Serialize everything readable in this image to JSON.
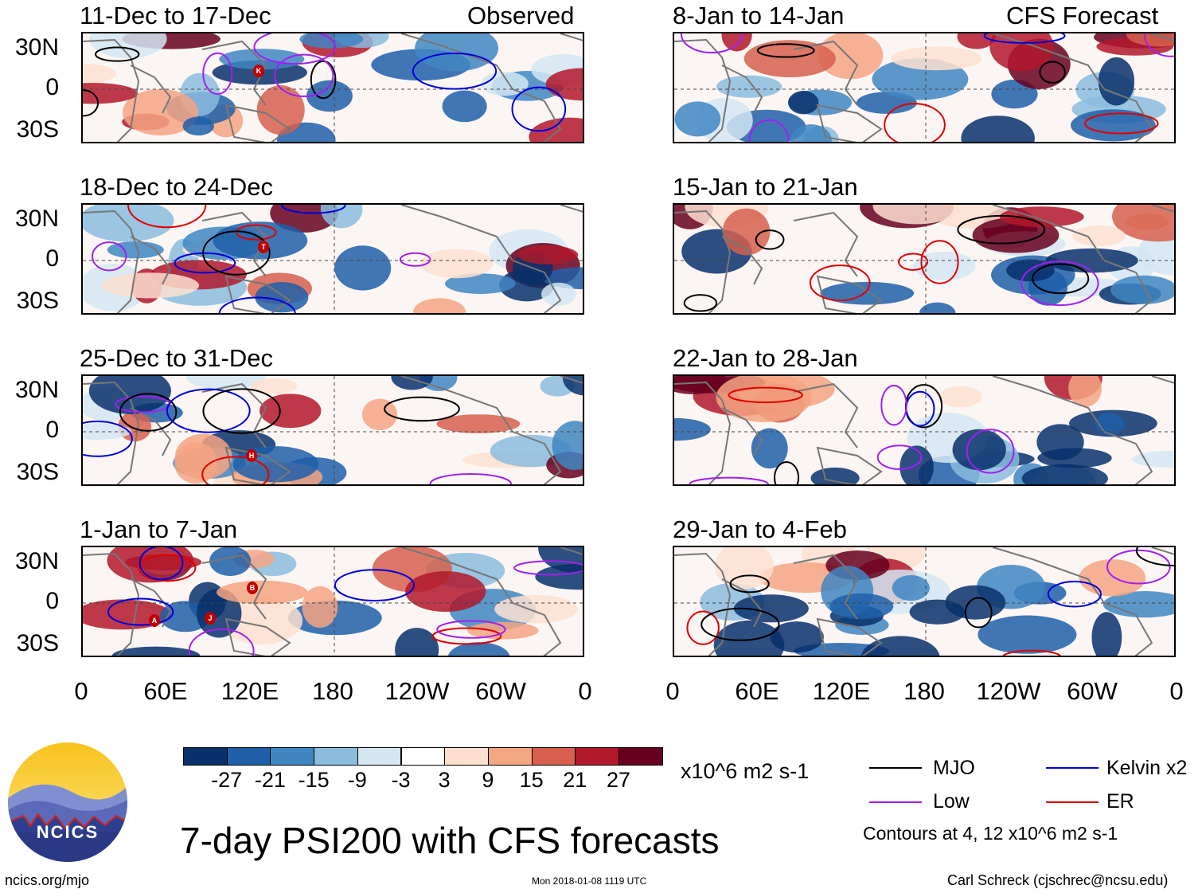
{
  "observed_label": "Observed",
  "forecast_label": "CFS Forecast",
  "lat_labels": [
    "30N",
    "0",
    "30S"
  ],
  "lon_labels": [
    "0",
    "60E",
    "120E",
    "180",
    "120W",
    "60W",
    "0"
  ],
  "panels_left": [
    {
      "title": "11-Dec to 17-Dec",
      "storms": [
        "K"
      ]
    },
    {
      "title": "18-Dec to 24-Dec",
      "storms": [
        "T"
      ]
    },
    {
      "title": "25-Dec to 31-Dec",
      "storms": [
        "H"
      ]
    },
    {
      "title": "1-Jan to 7-Jan",
      "storms": [
        "B",
        "A",
        "J"
      ]
    }
  ],
  "panels_right": [
    {
      "title": "8-Jan to 14-Jan"
    },
    {
      "title": "15-Jan to 21-Jan"
    },
    {
      "title": "22-Jan to 28-Jan"
    },
    {
      "title": "29-Jan to 4-Feb"
    }
  ],
  "colorbar": {
    "colors": [
      "#08306b",
      "#1f5fa8",
      "#3f86c2",
      "#8bbcde",
      "#d4e6f2",
      "#ffffff",
      "#fde0d0",
      "#f4a582",
      "#d6604d",
      "#b2182b",
      "#67001f"
    ],
    "labels": [
      "-27",
      "-21",
      "-15",
      "-9",
      "-3",
      "3",
      "9",
      "15",
      "21",
      "27"
    ],
    "units": "x10^6 m2 s-1"
  },
  "legend": {
    "items": [
      {
        "label": "MJO",
        "color": "#000000"
      },
      {
        "label": "Kelvin x2",
        "color": "#0000dd"
      },
      {
        "label": "Low",
        "color": "#a020f0"
      },
      {
        "label": "ER",
        "color": "#e00000"
      }
    ],
    "contours_note": "Contours at 4, 12 x10^6 m2 s-1"
  },
  "main_title": "7-day PSI200 with CFS forecasts",
  "logo_text": "NCICS",
  "footer": {
    "url": "ncics.org/mjo",
    "timestamp": "Mon 2018-01-08 1119 UTC",
    "author": "Carl Schreck (cjschrec@ncsu.edu)"
  }
}
